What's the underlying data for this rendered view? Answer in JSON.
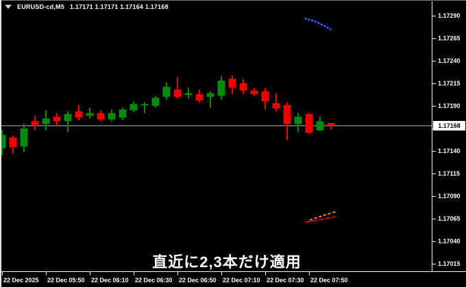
{
  "window": {
    "symbol_period": "EURUSD-cd,M5",
    "quote": "1.17171 1.17171 1.17164 1.17168"
  },
  "caption": {
    "text": "直近に2,3本だけ適用"
  },
  "price_axis": {
    "current": "1.17168",
    "ticks": [
      "1.17290",
      "1.17265",
      "1.17240",
      "1.17215",
      "1.17190",
      "1.17165",
      "1.17140",
      "1.17115",
      "1.17090",
      "1.17065",
      "1.17040",
      "1.17015"
    ]
  },
  "colors": {
    "background": "#000000",
    "bullish": "#0a8a0a",
    "bearish": "#f20000",
    "bid_line": "#aebcc8",
    "axis": "#ffffff",
    "text": "#ffffff",
    "current_label_bg": "#ffffff",
    "current_label_text": "#000000"
  },
  "chart_data": {
    "type": "candlestick",
    "symbol": "EURUSD-cd",
    "timeframe": "M5",
    "title": "EURUSD-cd,M5",
    "ohlc_readout": {
      "open": 1.17171,
      "high": 1.17171,
      "low": 1.17164,
      "close": 1.17168
    },
    "ylim": [
      1.17015,
      1.1729
    ],
    "grid": false,
    "x_labels": [
      "22 Dec 2025",
      "22 Dec 05:50",
      "22 Dec 06:10",
      "22 Dec 06:30",
      "22 Dec 06:50",
      "22 Dec 07:10",
      "22 Dec 07:30",
      "22 Dec 07:50"
    ],
    "current_price": 1.17168,
    "candles": [
      {
        "time": "05:30",
        "o": 1.17143,
        "h": 1.17164,
        "l": 1.17135,
        "c": 1.17158
      },
      {
        "time": "05:35",
        "o": 1.17155,
        "h": 1.17157,
        "l": 1.17137,
        "c": 1.17144
      },
      {
        "time": "05:40",
        "o": 1.17145,
        "h": 1.1717,
        "l": 1.17139,
        "c": 1.17165
      },
      {
        "time": "05:45",
        "o": 1.17173,
        "h": 1.17179,
        "l": 1.17163,
        "c": 1.17169
      },
      {
        "time": "05:50",
        "o": 1.1717,
        "h": 1.17185,
        "l": 1.17163,
        "c": 1.17176
      },
      {
        "time": "05:55",
        "o": 1.17178,
        "h": 1.17182,
        "l": 1.17167,
        "c": 1.17173
      },
      {
        "time": "06:00",
        "o": 1.17173,
        "h": 1.17184,
        "l": 1.17161,
        "c": 1.17181
      },
      {
        "time": "06:05",
        "o": 1.17184,
        "h": 1.17191,
        "l": 1.17174,
        "c": 1.17177
      },
      {
        "time": "06:10",
        "o": 1.17179,
        "h": 1.17188,
        "l": 1.17176,
        "c": 1.17182
      },
      {
        "time": "06:15",
        "o": 1.17182,
        "h": 1.17185,
        "l": 1.17173,
        "c": 1.17175
      },
      {
        "time": "06:20",
        "o": 1.17175,
        "h": 1.17186,
        "l": 1.17173,
        "c": 1.17182
      },
      {
        "time": "06:25",
        "o": 1.17177,
        "h": 1.17188,
        "l": 1.17174,
        "c": 1.17186
      },
      {
        "time": "06:30",
        "o": 1.17185,
        "h": 1.17195,
        "l": 1.17183,
        "c": 1.17192
      },
      {
        "time": "06:35",
        "o": 1.17191,
        "h": 1.17194,
        "l": 1.17182,
        "c": 1.17192
      },
      {
        "time": "06:40",
        "o": 1.1719,
        "h": 1.17201,
        "l": 1.17188,
        "c": 1.17199
      },
      {
        "time": "06:45",
        "o": 1.172,
        "h": 1.17216,
        "l": 1.17197,
        "c": 1.17211
      },
      {
        "time": "06:50",
        "o": 1.17208,
        "h": 1.17222,
        "l": 1.17198,
        "c": 1.172
      },
      {
        "time": "06:55",
        "o": 1.17202,
        "h": 1.1721,
        "l": 1.17198,
        "c": 1.17204
      },
      {
        "time": "07:00",
        "o": 1.17203,
        "h": 1.17208,
        "l": 1.17194,
        "c": 1.17196
      },
      {
        "time": "07:05",
        "o": 1.172,
        "h": 1.17206,
        "l": 1.17188,
        "c": 1.17204
      },
      {
        "time": "07:10",
        "o": 1.17201,
        "h": 1.17223,
        "l": 1.17197,
        "c": 1.17218
      },
      {
        "time": "07:15",
        "o": 1.1722,
        "h": 1.17224,
        "l": 1.17203,
        "c": 1.1721
      },
      {
        "time": "07:20",
        "o": 1.17215,
        "h": 1.1722,
        "l": 1.17203,
        "c": 1.17207
      },
      {
        "time": "07:25",
        "o": 1.17207,
        "h": 1.1721,
        "l": 1.17201,
        "c": 1.17203
      },
      {
        "time": "07:30",
        "o": 1.17206,
        "h": 1.1721,
        "l": 1.17186,
        "c": 1.17195
      },
      {
        "time": "07:35",
        "o": 1.17193,
        "h": 1.17204,
        "l": 1.17184,
        "c": 1.17187
      },
      {
        "time": "07:40",
        "o": 1.17191,
        "h": 1.17194,
        "l": 1.17152,
        "c": 1.1717
      },
      {
        "time": "07:45",
        "o": 1.1717,
        "h": 1.17182,
        "l": 1.17161,
        "c": 1.17178
      },
      {
        "time": "07:50",
        "o": 1.17181,
        "h": 1.17182,
        "l": 1.17159,
        "c": 1.1716
      },
      {
        "time": "07:55",
        "o": 1.17163,
        "h": 1.17178,
        "l": 1.17162,
        "c": 1.17173
      },
      {
        "time": "08:00",
        "o": 1.17171,
        "h": 1.17171,
        "l": 1.17164,
        "c": 1.17168
      }
    ]
  },
  "overlays": [
    {
      "id": "upper-trend-blue-solid",
      "color": "#0013cc",
      "width": 2,
      "dash": "",
      "points": [
        [
          447,
          28
        ],
        [
          458,
          31
        ],
        [
          469,
          36
        ],
        [
          484,
          44
        ]
      ]
    },
    {
      "id": "upper-trend-blue-dotted",
      "color": "#5e9bff",
      "width": 2,
      "dash": "2,3",
      "points": [
        [
          445,
          27
        ],
        [
          457,
          30
        ],
        [
          468,
          35
        ],
        [
          483,
          43
        ]
      ]
    },
    {
      "id": "lower-trend-orange-dashed",
      "color": "#ff9213",
      "width": 2,
      "dash": "4,3",
      "points": [
        [
          452,
          322
        ],
        [
          464,
          318
        ],
        [
          476,
          314
        ],
        [
          489,
          310
        ]
      ]
    },
    {
      "id": "lower-trend-red",
      "color": "#dd0000",
      "width": 2,
      "dash": "8,2",
      "points": [
        [
          445,
          325
        ],
        [
          460,
          323
        ],
        [
          475,
          320
        ],
        [
          490,
          317
        ]
      ]
    }
  ]
}
